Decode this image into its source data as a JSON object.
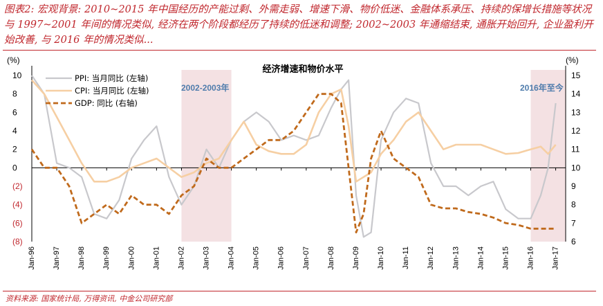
{
  "caption": "图表2: 宏观背景: 2010~2015 年中国经历的产能过剩、外需走弱、增速下滑、物价低迷、金融体系承压、持续的保增长措施等状况与 1997~2001 年间的情况类似, 经济在两个阶段都经历了持续的低迷和调整; 2002~2003 年通缩结束, 通胀开始回升, 企业盈利开始改善, 与 2016 年的情况类似...",
  "source": "资料来源: 国家统计局, 万得资讯, 中金公司研究部",
  "colors": {
    "accent": "#c0272d",
    "ppi": "#c8c8cc",
    "cpi": "#f6cfa3",
    "gdp": "#c06a1c",
    "shade": "#f4e1e3",
    "annotation": "#4f7cac"
  },
  "chart_data": {
    "type": "line",
    "title": "经济增速和物价水平",
    "left_unit": "(%)",
    "right_unit": "(%)",
    "ylim_left": [
      -8,
      10
    ],
    "ylim_right": [
      6,
      15
    ],
    "left_ticks": [
      "10",
      "8",
      "6",
      "4",
      "2",
      "0",
      "(2)",
      "(4)",
      "(6)",
      "(8)"
    ],
    "right_ticks": [
      "15",
      "14",
      "13",
      "12",
      "11",
      "10",
      "9",
      "8",
      "7",
      "6"
    ],
    "x_ticks": [
      "Jan-96",
      "Jan-97",
      "Jan-98",
      "Jan-99",
      "Jan-00",
      "Jan-01",
      "Jan-02",
      "Jan-03",
      "Jan-04",
      "Jan-05",
      "Jan-06",
      "Jan-07",
      "Jan-08",
      "Jan-09",
      "Jan-10",
      "Jan-11",
      "Jan-12",
      "Jan-13",
      "Jan-14",
      "Jan-15",
      "Jan-16",
      "Jan-17"
    ],
    "shaded_periods": [
      {
        "label": "2002-2003年",
        "start": 2002.0,
        "end": 2004.0
      },
      {
        "label": "2016年至今",
        "start": 2016.0,
        "end": 2017.4
      }
    ],
    "legend_position": "top-left",
    "series": [
      {
        "name": "PPI: 当月同比 (左轴)",
        "axis": "left",
        "x": [
          1996.0,
          1996.5,
          1997.0,
          1997.5,
          1998.0,
          1998.5,
          1999.0,
          1999.5,
          2000.0,
          2000.5,
          2001.0,
          2001.5,
          2002.0,
          2002.5,
          2003.0,
          2003.5,
          2004.0,
          2004.5,
          2005.0,
          2005.5,
          2006.0,
          2006.5,
          2007.0,
          2007.5,
          2008.0,
          2008.4,
          2008.7,
          2009.0,
          2009.3,
          2009.6,
          2010.0,
          2010.5,
          2011.0,
          2011.5,
          2012.0,
          2012.5,
          2013.0,
          2013.5,
          2014.0,
          2014.5,
          2015.0,
          2015.5,
          2016.0,
          2016.4,
          2016.7,
          2017.0
        ],
        "y": [
          10.0,
          8.0,
          0.5,
          0.0,
          -1.0,
          -5.0,
          -5.5,
          -3.5,
          1.0,
          3.0,
          4.5,
          -1.0,
          -4.0,
          -2.0,
          2.0,
          0.0,
          3.0,
          5.0,
          6.0,
          5.0,
          3.0,
          3.5,
          3.0,
          3.5,
          6.5,
          8.5,
          9.5,
          -3.0,
          -7.5,
          -7.0,
          3.0,
          6.0,
          7.5,
          7.0,
          0.5,
          -2.0,
          -2.0,
          -3.0,
          -2.0,
          -1.5,
          -4.5,
          -5.5,
          -5.5,
          -3.0,
          0.0,
          7.0
        ]
      },
      {
        "name": "CPI: 当月同比 (左轴)",
        "axis": "left",
        "x": [
          1996.0,
          1996.5,
          1997.0,
          1997.5,
          1998.0,
          1998.5,
          1999.0,
          1999.5,
          2000.0,
          2000.5,
          2001.0,
          2001.5,
          2002.0,
          2002.5,
          2003.0,
          2003.5,
          2004.0,
          2004.5,
          2005.0,
          2005.5,
          2006.0,
          2006.5,
          2007.0,
          2007.5,
          2008.0,
          2008.4,
          2008.7,
          2009.0,
          2009.3,
          2009.6,
          2010.0,
          2010.5,
          2011.0,
          2011.5,
          2012.0,
          2012.5,
          2013.0,
          2013.5,
          2014.0,
          2014.5,
          2015.0,
          2015.5,
          2016.0,
          2016.4,
          2016.7,
          2017.0
        ],
        "y": [
          9.5,
          8.0,
          5.5,
          3.0,
          0.5,
          -1.5,
          -1.5,
          -1.0,
          0.0,
          0.5,
          1.0,
          0.0,
          -1.0,
          -0.5,
          0.5,
          1.0,
          3.0,
          5.0,
          2.5,
          1.8,
          1.5,
          1.5,
          2.5,
          6.0,
          8.0,
          8.5,
          4.5,
          -1.5,
          -1.0,
          -0.5,
          1.5,
          3.0,
          5.0,
          6.0,
          4.0,
          2.0,
          2.5,
          2.5,
          2.5,
          2.0,
          1.5,
          1.6,
          2.0,
          2.3,
          1.5,
          2.5
        ]
      },
      {
        "name": "GDP: 同比 (右轴)",
        "axis": "right",
        "x": [
          1996.0,
          1996.5,
          1997.0,
          1997.5,
          1998.0,
          1998.5,
          1999.0,
          1999.5,
          2000.0,
          2000.5,
          2001.0,
          2001.5,
          2002.0,
          2002.5,
          2003.0,
          2003.5,
          2004.0,
          2004.5,
          2005.0,
          2005.5,
          2006.0,
          2006.5,
          2007.0,
          2007.5,
          2008.0,
          2008.4,
          2008.7,
          2009.0,
          2009.3,
          2009.6,
          2010.0,
          2010.5,
          2011.0,
          2011.5,
          2012.0,
          2012.5,
          2013.0,
          2013.5,
          2014.0,
          2014.5,
          2015.0,
          2015.5,
          2016.0,
          2016.4,
          2016.7,
          2017.0
        ],
        "y": [
          11.0,
          10.0,
          10.0,
          9.0,
          7.0,
          7.5,
          8.0,
          7.5,
          8.5,
          8.0,
          8.0,
          7.5,
          8.5,
          9.0,
          10.5,
          10.0,
          10.0,
          10.5,
          11.0,
          11.5,
          11.5,
          12.0,
          13.0,
          14.0,
          14.0,
          13.5,
          10.0,
          6.5,
          7.5,
          10.5,
          12.0,
          10.5,
          10.0,
          9.5,
          8.0,
          7.8,
          7.8,
          7.6,
          7.5,
          7.3,
          7.0,
          6.9,
          6.7,
          6.7,
          6.7,
          6.7
        ]
      }
    ]
  }
}
